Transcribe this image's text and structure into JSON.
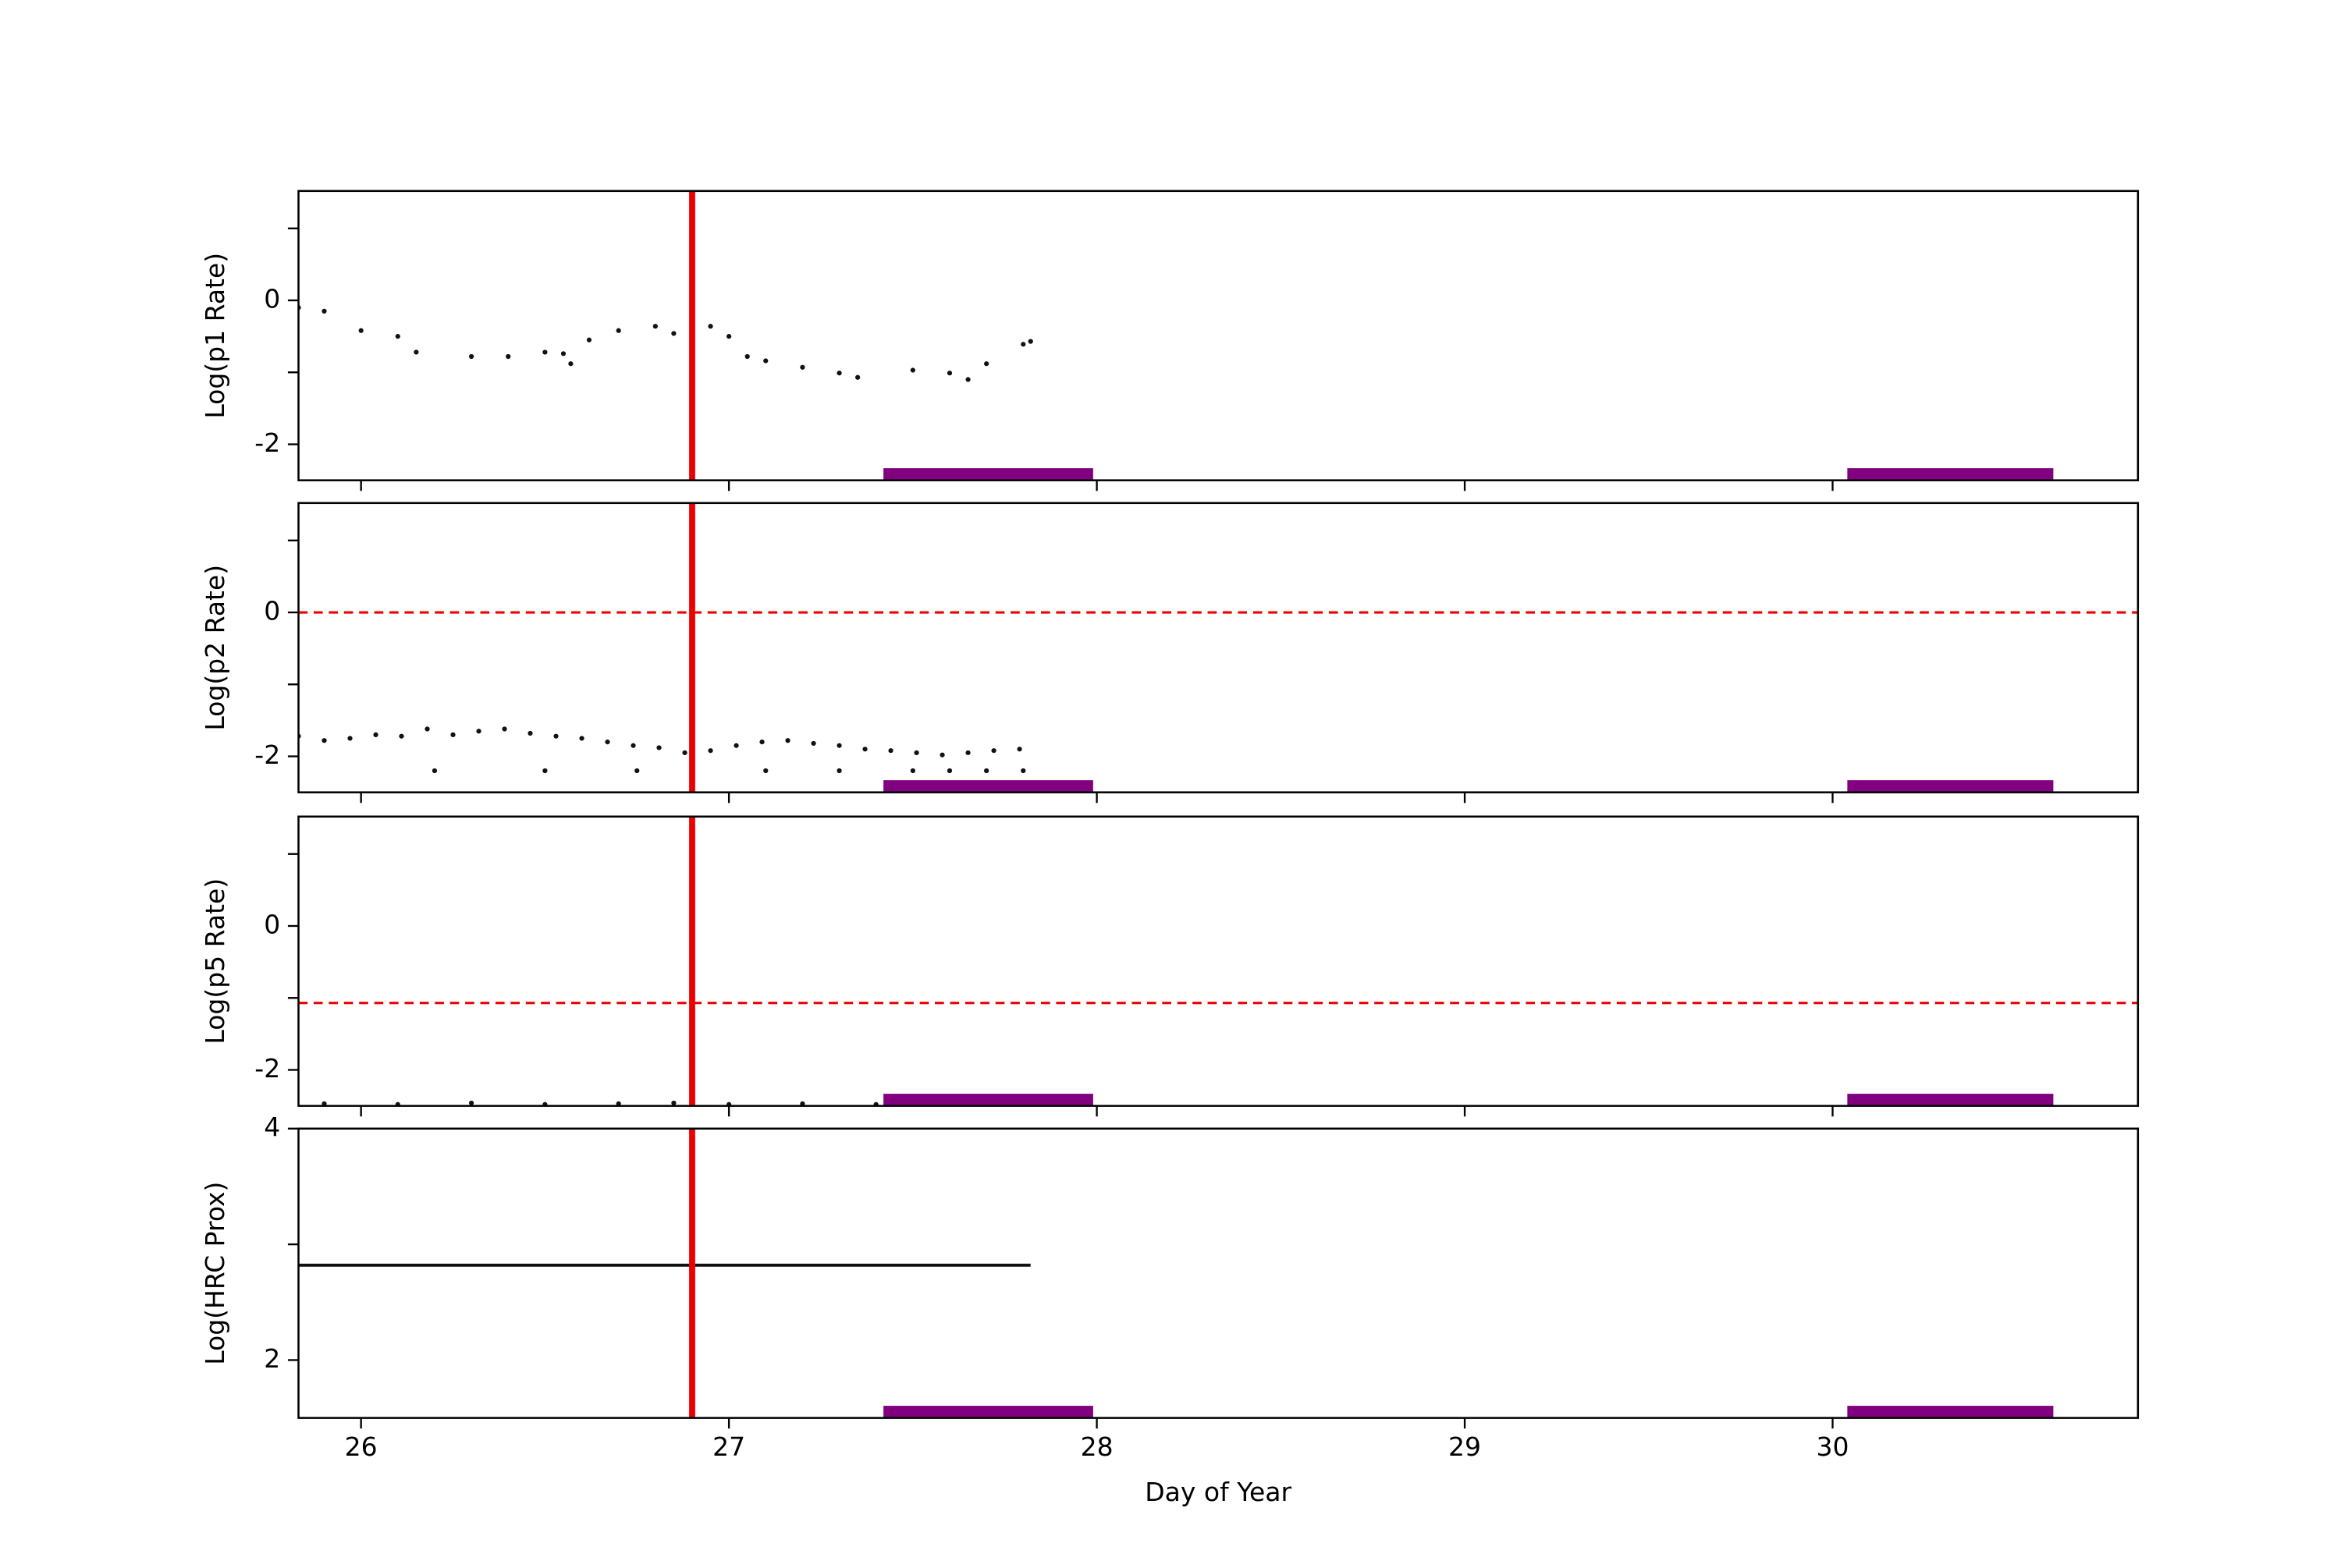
{
  "x_axis": {
    "label": "Day of Year",
    "xlim": [
      25.83,
      30.83
    ],
    "xticks": [
      26,
      27,
      28,
      29,
      30
    ]
  },
  "mark_colors": {
    "vline": "#ee0000",
    "hline": "#ee0000",
    "band": "#800080"
  },
  "chart_data": [
    {
      "type": "scatter",
      "ylabel": "Log(p1 Rate)",
      "ylim": [
        -2.5,
        1.52
      ],
      "yticks": [
        -2,
        0
      ],
      "minor_yticks": [
        -1,
        1
      ],
      "vline": 26.9,
      "bands": [
        [
          27.42,
          27.99
        ],
        [
          30.04,
          30.6
        ]
      ],
      "series": [
        {
          "color": "#111111",
          "x": [
            25.83,
            25.9,
            26.0,
            26.1,
            26.15,
            26.3,
            26.4,
            26.5,
            26.55,
            26.57,
            26.62,
            26.7,
            26.8,
            26.85,
            26.9,
            26.95,
            27.0,
            27.05,
            27.1,
            27.2,
            27.3,
            27.35,
            27.5,
            27.6,
            27.65,
            27.7,
            27.8,
            27.82
          ],
          "values": [
            -0.1,
            -0.15,
            -0.42,
            -0.5,
            -0.72,
            -0.78,
            -0.78,
            -0.72,
            -0.74,
            -0.88,
            -0.55,
            -0.42,
            -0.36,
            -0.46,
            -0.44,
            -0.36,
            -0.5,
            -0.78,
            -0.84,
            -0.93,
            -1.01,
            -1.07,
            -0.97,
            -1.01,
            -1.1,
            -0.88,
            -0.61,
            -0.57
          ]
        }
      ]
    },
    {
      "type": "scatter",
      "ylabel": "Log(p2 Rate)",
      "ylim": [
        -2.5,
        1.52
      ],
      "yticks": [
        -2,
        0
      ],
      "minor_yticks": [
        -1,
        1
      ],
      "hline": 0,
      "vline": 26.9,
      "bands": [
        [
          27.42,
          27.99
        ],
        [
          30.04,
          30.6
        ]
      ],
      "series": [
        {
          "color": "#111111",
          "x": [
            25.83,
            25.9,
            25.97,
            26.04,
            26.11,
            26.18,
            26.25,
            26.32,
            26.39,
            26.46,
            26.53,
            26.6,
            26.67,
            26.74,
            26.81,
            26.88,
            26.95,
            27.02,
            27.09,
            27.16,
            27.23,
            27.3,
            27.37,
            27.44,
            27.51,
            27.58,
            27.65,
            27.72,
            27.79
          ],
          "values": [
            -1.72,
            -1.78,
            -1.75,
            -1.7,
            -1.72,
            -1.62,
            -1.7,
            -1.65,
            -1.62,
            -1.68,
            -1.72,
            -1.75,
            -1.8,
            -1.85,
            -1.88,
            -1.95,
            -1.92,
            -1.85,
            -1.8,
            -1.78,
            -1.82,
            -1.85,
            -1.9,
            -1.92,
            -1.95,
            -1.98,
            -1.95,
            -1.92,
            -1.9
          ]
        },
        {
          "color": "#111111",
          "x": [
            26.2,
            26.5,
            26.75,
            26.9,
            27.1,
            27.3,
            27.5,
            27.6,
            27.7,
            27.8
          ],
          "values": [
            -2.2,
            -2.2,
            -2.2,
            -2.2,
            -2.2,
            -2.2,
            -2.2,
            -2.2,
            -2.2,
            -2.2
          ]
        }
      ]
    },
    {
      "type": "scatter",
      "ylabel": "Log(p5 Rate)",
      "ylim": [
        -2.5,
        1.52
      ],
      "yticks": [
        -2,
        0
      ],
      "minor_yticks": [
        -1,
        1
      ],
      "hline": -1.07,
      "vline": 26.9,
      "bands": [
        [
          27.42,
          27.99
        ],
        [
          30.04,
          30.6
        ]
      ],
      "series": [
        {
          "color": "#111111",
          "x": [
            25.9,
            26.1,
            26.3,
            26.5,
            26.7,
            26.85,
            27.0,
            27.2,
            27.4
          ],
          "values": [
            -2.47,
            -2.48,
            -2.46,
            -2.48,
            -2.47,
            -2.46,
            -2.48,
            -2.47,
            -2.48
          ]
        }
      ]
    },
    {
      "type": "line",
      "ylabel": "Log(HRC Prox)",
      "ylim": [
        1.5,
        4
      ],
      "yticks": [
        2,
        4
      ],
      "minor_yticks": [
        3
      ],
      "vline": 26.9,
      "bands": [
        [
          27.42,
          27.99
        ],
        [
          30.04,
          30.6
        ]
      ],
      "series": [
        {
          "color": "#111111",
          "x": [
            25.83,
            26.3,
            26.8,
            27.3,
            27.82
          ],
          "values": [
            2.82,
            2.82,
            2.82,
            2.82,
            2.82
          ]
        }
      ]
    }
  ]
}
